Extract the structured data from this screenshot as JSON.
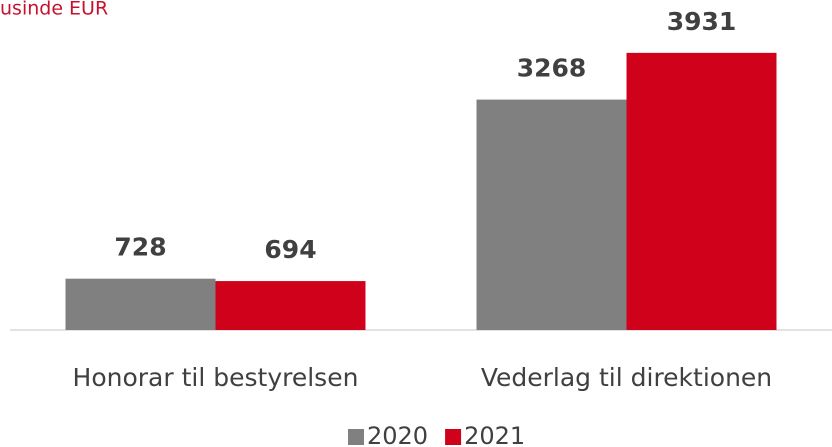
{
  "chart_data": {
    "type": "bar",
    "title": "usinde EUR",
    "categories": [
      "Honorar til bestyrelsen",
      "Vederlag til direktionen"
    ],
    "series": [
      {
        "name": "2020",
        "color": "#808080",
        "values": [
          728,
          3268
        ]
      },
      {
        "name": "2021",
        "color": "#d0021b",
        "values": [
          694,
          3931
        ]
      }
    ],
    "ylim": [
      0,
      4500
    ]
  }
}
